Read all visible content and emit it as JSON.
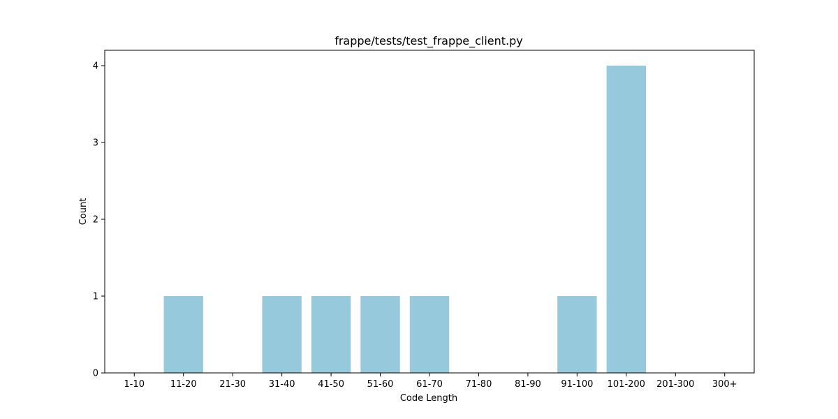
{
  "chart_data": {
    "type": "bar",
    "title": "frappe/tests/test_frappe_client.py",
    "xlabel": "Code Length",
    "ylabel": "Count",
    "categories": [
      "1-10",
      "11-20",
      "21-30",
      "31-40",
      "41-50",
      "51-60",
      "61-70",
      "71-80",
      "81-90",
      "91-100",
      "101-200",
      "201-300",
      "300+"
    ],
    "values": [
      0,
      1,
      0,
      1,
      1,
      1,
      1,
      0,
      0,
      1,
      4,
      0,
      0
    ],
    "ylim": [
      0,
      4.2
    ],
    "yticks": [
      0,
      1,
      2,
      3,
      4
    ],
    "bar_color": "#96c9dc",
    "grid": false,
    "legend": "none"
  }
}
